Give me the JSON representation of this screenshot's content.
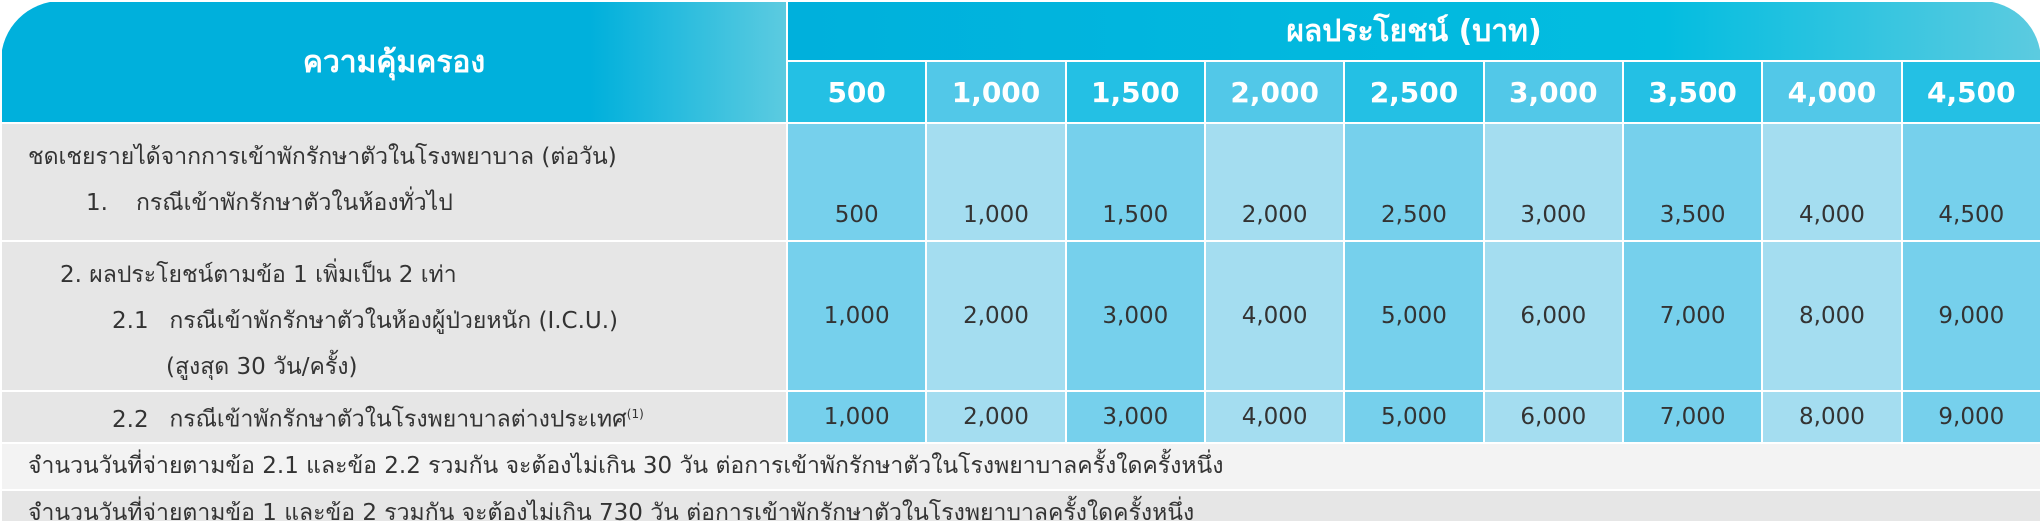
{
  "header": {
    "coverage": "ความคุ้มครอง",
    "benefit": "ผลประโยชน์ (บาท)",
    "plans": [
      "500",
      "1,000",
      "1,500",
      "2,000",
      "2,500",
      "3,000",
      "3,500",
      "4,000",
      "4,500"
    ]
  },
  "rows": [
    {
      "title": "ชดเชยรายได้จากการเข้าพักรักษาตัวในโรงพยาบาล (ต่อวัน)",
      "num": "1.",
      "label": "กรณีเข้าพักรักษาตัวในห้องทั่วไป",
      "values": [
        "500",
        "1,000",
        "1,500",
        "2,000",
        "2,500",
        "3,000",
        "3,500",
        "4,000",
        "4,500"
      ]
    },
    {
      "title": "2. ผลประโยชน์ตามข้อ 1 เพิ่มเป็น 2 เท่า",
      "num": "2.1",
      "label": "กรณีเข้าพักรักษาตัวในห้องผู้ป่วยหนัก (I.C.U.)",
      "note": "(สูงสุด 30 วัน/ครั้ง)",
      "values": [
        "1,000",
        "2,000",
        "3,000",
        "4,000",
        "5,000",
        "6,000",
        "7,000",
        "8,000",
        "9,000"
      ]
    },
    {
      "num": "2.2",
      "label": "กรณีเข้าพักรักษาตัวในโรงพยาบาลต่างประเทศ",
      "footnote": "(1)",
      "values": [
        "1,000",
        "2,000",
        "3,000",
        "4,000",
        "5,000",
        "6,000",
        "7,000",
        "8,000",
        "9,000"
      ]
    }
  ],
  "footer": [
    "จำนวนวันที่จ่ายตามข้อ 2.1 และข้อ 2.2 รวมกัน จะต้องไม่เกิน 30 วัน ต่อการเข้าพักรักษาตัวในโรงพยาบาลครั้งใดครั้งหนึ่ง",
    "จำนวนวันที่จ่ายตามข้อ 1 และข้อ 2 รวมกัน จะต้องไม่เกิน 730 วัน ต่อการเข้าพักรักษาตัวในโรงพยาบาลครั้งใดครั้งหนึ่ง"
  ]
}
